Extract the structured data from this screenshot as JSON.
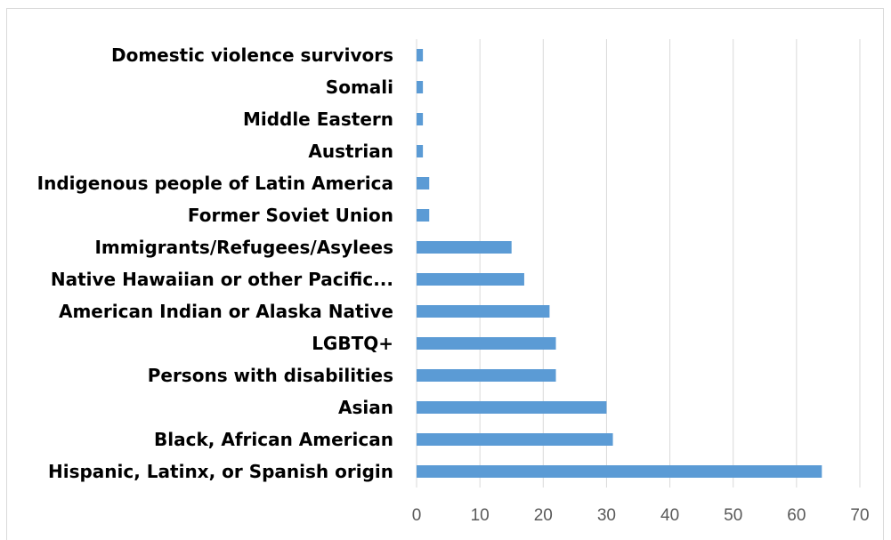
{
  "chart_data": {
    "type": "bar",
    "orientation": "horizontal",
    "categories": [
      "Hispanic, Latinx, or Spanish origin",
      "Black, African American",
      "Asian",
      "Persons with disabilities",
      "LGBTQ+",
      "American Indian or Alaska Native",
      "Native Hawaiian or other Pacific...",
      "Immigrants/Refugees/Asylees",
      "Former Soviet Union",
      "Indigenous people of Latin America",
      "Austrian",
      "Middle Eastern",
      "Somali",
      "Domestic violence survivors"
    ],
    "values": [
      64,
      31,
      30,
      22,
      22,
      21,
      17,
      15,
      2,
      2,
      1,
      1,
      1,
      1
    ],
    "xlim": [
      0,
      70
    ],
    "xticks": [
      0,
      10,
      20,
      30,
      40,
      50,
      60,
      70
    ],
    "title": "",
    "xlabel": "",
    "ylabel": "",
    "grid": "vertical",
    "bar_color": "#5b9bd5",
    "grid_color": "#d9d9d9",
    "legend": "none"
  }
}
